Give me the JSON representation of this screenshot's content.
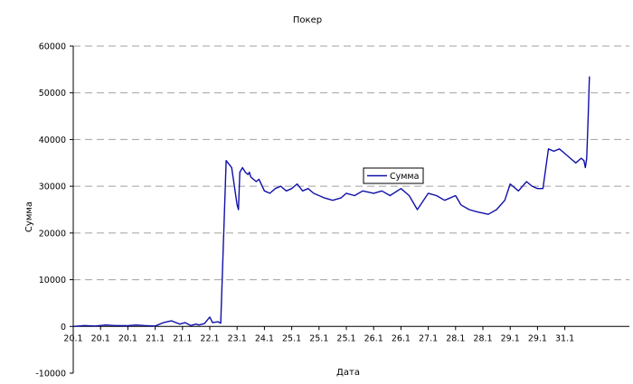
{
  "chart_data": {
    "type": "line",
    "title": "Покер",
    "xlabel": "Дата",
    "ylabel": "Сумма",
    "ylim": [
      -10000,
      60000
    ],
    "yticks": [
      -10000,
      0,
      10000,
      20000,
      30000,
      40000,
      50000,
      60000
    ],
    "ytick_labels": [
      "-10000",
      "0",
      "10000",
      "20000",
      "30000",
      "40000",
      "50000",
      "60000"
    ],
    "xtick_labels": [
      "20.1",
      "20.1",
      "20.1",
      "21.1",
      "21.1",
      "22.1",
      "23.1",
      "24.1",
      "25.1",
      "25.1",
      "25.1",
      "26.1",
      "26.1",
      "27.1",
      "28.1",
      "28.1",
      "29.1",
      "29.1",
      "31.1"
    ],
    "grid": "horizontal dashed",
    "legend": "center-right",
    "colors": {
      "series": "#1010a8",
      "grid": "#a0a0a0",
      "axis": "#000000"
    },
    "series": [
      {
        "name": "Сумма",
        "x": [
          0,
          0.4,
          0.8,
          1.2,
          1.5,
          2.0,
          2.3,
          2.6,
          3.0,
          3.3,
          3.6,
          3.9,
          4.1,
          4.3,
          4.5,
          4.6,
          4.8,
          5.0,
          5.1,
          5.3,
          5.4,
          5.6,
          5.8,
          5.9,
          6.0,
          6.05,
          6.1,
          6.2,
          6.3,
          6.4,
          6.45,
          6.5,
          6.6,
          6.7,
          6.8,
          7.0,
          7.2,
          7.4,
          7.6,
          7.8,
          8.0,
          8.2,
          8.4,
          8.6,
          8.8,
          9.0,
          9.2,
          9.5,
          9.8,
          10.0,
          10.3,
          10.6,
          11.0,
          11.3,
          11.6,
          12.0,
          12.3,
          12.6,
          13.0,
          13.3,
          13.6,
          14.0,
          14.2,
          14.5,
          14.8,
          15.2,
          15.5,
          15.8,
          16.0,
          16.3,
          16.6,
          16.8,
          17.0,
          17.2,
          17.4,
          17.6,
          17.8,
          18.0,
          18.2,
          18.4,
          18.6,
          18.7,
          18.75,
          18.8,
          18.85,
          18.9
        ],
        "values": [
          0,
          200,
          100,
          300,
          200,
          150,
          300,
          200,
          100,
          800,
          1200,
          500,
          800,
          200,
          500,
          300,
          600,
          2000,
          800,
          1000,
          700,
          35500,
          34000,
          30000,
          26000,
          25000,
          33000,
          34000,
          33000,
          32500,
          33000,
          32000,
          31500,
          31000,
          31500,
          29000,
          28500,
          29500,
          30000,
          29000,
          29500,
          30500,
          29000,
          29500,
          28500,
          28000,
          27500,
          27000,
          27500,
          28500,
          28000,
          29000,
          28500,
          29000,
          28000,
          29500,
          28000,
          25000,
          28500,
          28000,
          27000,
          28000,
          26000,
          25000,
          24500,
          24000,
          25000,
          27000,
          30500,
          29000,
          31000,
          30000,
          29500,
          29500,
          38000,
          37500,
          38000,
          37000,
          36000,
          35000,
          36000,
          35500,
          34000,
          36000,
          44000,
          53500
        ]
      }
    ]
  }
}
